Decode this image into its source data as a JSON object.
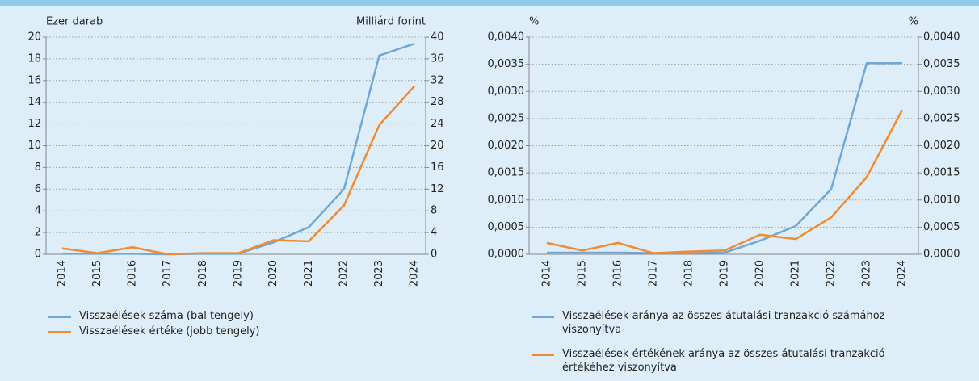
{
  "chart_data": [
    {
      "type": "line",
      "ylabel": "Ezer darab",
      "y2label": "Milliárd forint",
      "categories": [
        "2014",
        "2015",
        "2016",
        "2017",
        "2018",
        "2019",
        "2020",
        "2021",
        "2022",
        "2023",
        "2024"
      ],
      "ylim": [
        0,
        20
      ],
      "yticks": [
        0,
        2,
        4,
        6,
        8,
        10,
        12,
        14,
        16,
        18,
        20
      ],
      "y2lim": [
        0,
        40
      ],
      "y2ticks": [
        0,
        4,
        8,
        12,
        16,
        20,
        24,
        28,
        32,
        36,
        40
      ],
      "grid": true,
      "series": [
        {
          "name": "Visszaélések száma (bal tengely)",
          "color": "#6fa8d6",
          "values": [
            0.05,
            0.05,
            0.05,
            0,
            0.05,
            0.05,
            1.1,
            2.5,
            6.0,
            18.3,
            19.4
          ]
        },
        {
          "name": "Visszaélések értéke (jobb tengely)",
          "color": "#f28a30",
          "axis": "y2",
          "values": [
            1.1,
            0.2,
            1.3,
            0,
            0.2,
            0.2,
            2.6,
            2.4,
            9.0,
            23.8,
            31.0
          ]
        }
      ]
    },
    {
      "type": "line",
      "ylabel": "%",
      "y2label": "%",
      "categories": [
        "2014",
        "2015",
        "2016",
        "2017",
        "2018",
        "2019",
        "2020",
        "2021",
        "2022",
        "2023",
        "2024"
      ],
      "ylim": [
        0,
        0.004
      ],
      "yticks": [
        {
          "value": 0,
          "label": "0,0000"
        },
        {
          "value": 0.0005,
          "label": "0,0005"
        },
        {
          "value": 0.001,
          "label": "0,0010"
        },
        {
          "value": 0.0015,
          "label": "0,0015"
        },
        {
          "value": 0.002,
          "label": "0,0020"
        },
        {
          "value": 0.0025,
          "label": "0,0025"
        },
        {
          "value": 0.003,
          "label": "0,0030"
        },
        {
          "value": 0.0035,
          "label": "0,0035"
        },
        {
          "value": 0.004,
          "label": "0,0040"
        }
      ],
      "y2lim": [
        0,
        0.004
      ],
      "y2ticks": [
        {
          "value": 0,
          "label": "0,0000"
        },
        {
          "value": 0.0005,
          "label": "0,0005"
        },
        {
          "value": 0.001,
          "label": "0,0010"
        },
        {
          "value": 0.0015,
          "label": "0,0015"
        },
        {
          "value": 0.002,
          "label": "0,0020"
        },
        {
          "value": 0.0025,
          "label": "0,0025"
        },
        {
          "value": 0.003,
          "label": "0,0030"
        },
        {
          "value": 0.0035,
          "label": "0,0035"
        },
        {
          "value": 0.004,
          "label": "0,0040"
        }
      ],
      "grid": true,
      "series": [
        {
          "name": "Visszaélések aránya az összes átutalási tranzakció számához viszonyítva",
          "color": "#6fa8d6",
          "values": [
            3e-05,
            3e-05,
            3e-05,
            2e-05,
            2e-05,
            3e-05,
            0.00025,
            0.00052,
            0.0012,
            0.00352,
            0.00352
          ]
        },
        {
          "name": "Visszaélések értékének aránya az összes átutalási tranzakció értékéhez viszonyítva",
          "color": "#f28a30",
          "axis": "y2",
          "values": [
            0.00021,
            7e-05,
            0.00021,
            2e-05,
            5e-05,
            7e-05,
            0.00036,
            0.00028,
            0.00068,
            0.00142,
            0.00266
          ]
        }
      ]
    }
  ]
}
